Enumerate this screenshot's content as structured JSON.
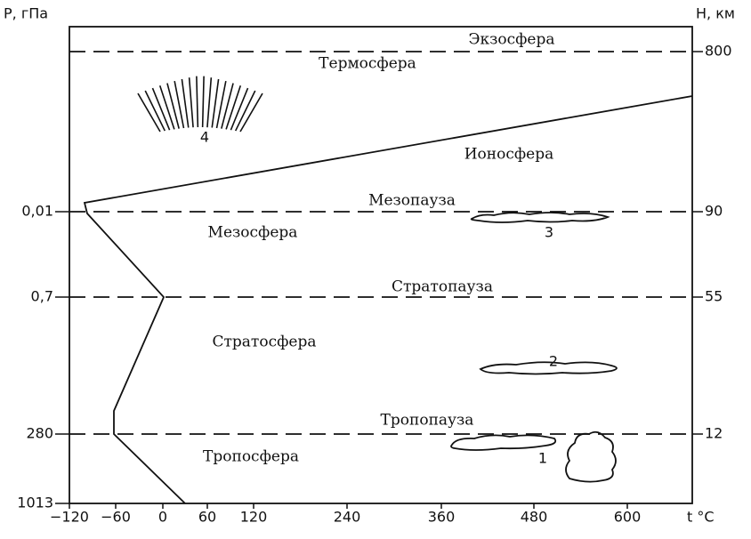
{
  "axes": {
    "left_title": "P, гПа",
    "right_title": "H, км",
    "bottom_title": "t °C",
    "left_ticks": [
      "0,01",
      "0,7",
      "280",
      "1013"
    ],
    "right_ticks": [
      "800",
      "90",
      "55",
      "12"
    ],
    "bottom_ticks": [
      "−120",
      "−60",
      "0",
      "60",
      "120",
      "240",
      "360",
      "480",
      "600"
    ]
  },
  "layers": [
    "Экзосфера",
    "Термосфера",
    "Ионосфера",
    "Мезопауза",
    "Мезосфера",
    "Стратопауза",
    "Стратосфера",
    "Тропопауза",
    "Тропосфера"
  ],
  "markers": [
    "1",
    "2",
    "3",
    "4"
  ]
}
